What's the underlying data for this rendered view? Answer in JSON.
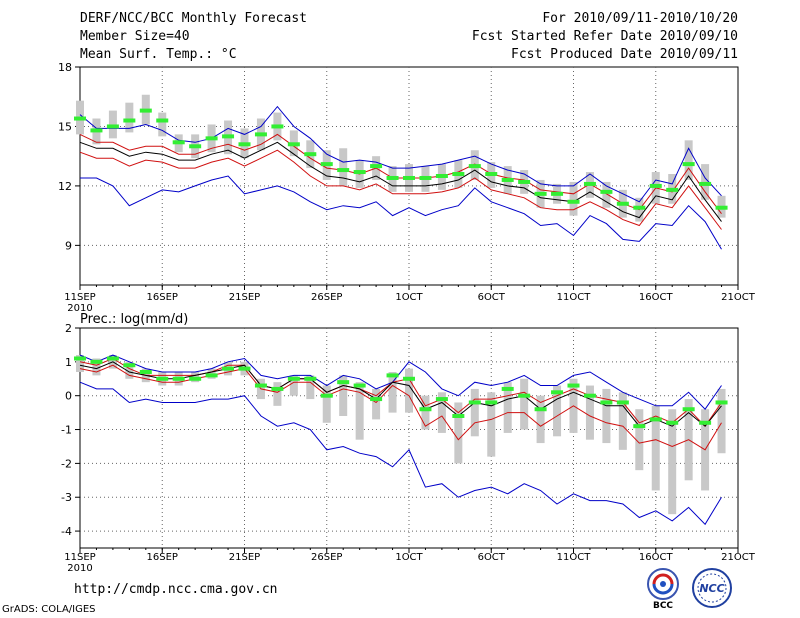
{
  "header": {
    "title": "DERF/NCC/BCC Monthly Forecast",
    "members": "Member Size=40",
    "variable": "Mean Surf. Temp.: °C",
    "period": "For 2010/09/11-2010/10/20",
    "refer": "Fcst Started Refer Date 2010/09/10",
    "produced": "Fcst Produced Date 2010/09/11"
  },
  "footer": {
    "url": "http://cmdp.ncc.cma.gov.cn",
    "grads": "GrADS: COLA/IGES",
    "logo_bcc": "BCC",
    "logo_ncc": "NCC"
  },
  "chart_data": [
    {
      "type": "line",
      "title": "Mean Surf. Temp.: °C",
      "ylim": [
        7,
        18
      ],
      "yticks": [
        9,
        12,
        15,
        18
      ],
      "xlim": [
        1,
        41
      ],
      "xticks": [
        {
          "day": 1,
          "label": "11SEP",
          "sub": "2010"
        },
        {
          "day": 6,
          "label": "16SEP"
        },
        {
          "day": 11,
          "label": "21SEP"
        },
        {
          "day": 16,
          "label": "26SEP"
        },
        {
          "day": 21,
          "label": "1OCT"
        },
        {
          "day": 26,
          "label": "6OCT"
        },
        {
          "day": 31,
          "label": "11OCT"
        },
        {
          "day": 36,
          "label": "16OCT"
        },
        {
          "day": 41,
          "label": "21OCT"
        }
      ],
      "days": [
        1,
        2,
        3,
        4,
        5,
        6,
        7,
        8,
        9,
        10,
        11,
        12,
        13,
        14,
        15,
        16,
        17,
        18,
        19,
        20,
        21,
        22,
        23,
        24,
        25,
        26,
        27,
        28,
        29,
        30,
        31,
        32,
        33,
        34,
        35,
        36,
        37,
        38,
        39,
        40
      ],
      "series": [
        {
          "name": "member-max",
          "color": "#0000c8",
          "values": [
            15.6,
            14.9,
            14.9,
            14.9,
            15.1,
            14.8,
            14.3,
            14.2,
            14.4,
            14.9,
            14.6,
            15.0,
            16.0,
            15.0,
            14.4,
            13.6,
            13.2,
            13.3,
            13.2,
            12.9,
            12.9,
            13.0,
            13.1,
            13.3,
            13.5,
            13.1,
            12.8,
            12.6,
            12.1,
            12.0,
            12.0,
            12.6,
            12.0,
            11.6,
            11.2,
            12.3,
            12.1,
            13.9,
            12.4,
            11.5
          ]
        },
        {
          "name": "upper-bound",
          "color": "#d01010",
          "values": [
            14.6,
            14.2,
            14.2,
            13.8,
            14.0,
            14.0,
            13.6,
            13.6,
            13.9,
            14.1,
            13.8,
            14.1,
            14.6,
            14.0,
            13.4,
            12.9,
            12.8,
            12.6,
            12.9,
            12.4,
            12.4,
            12.4,
            12.5,
            12.7,
            13.1,
            12.6,
            12.4,
            12.3,
            11.8,
            11.7,
            11.6,
            12.1,
            11.6,
            11.1,
            10.8,
            11.9,
            11.7,
            12.9,
            11.7,
            10.6
          ]
        },
        {
          "name": "ensemble-mean",
          "color": "#000000",
          "values": [
            14.2,
            13.9,
            13.9,
            13.5,
            13.7,
            13.6,
            13.3,
            13.3,
            13.6,
            13.8,
            13.4,
            13.8,
            14.2,
            13.6,
            13.0,
            12.5,
            12.4,
            12.2,
            12.5,
            12.0,
            12.0,
            12.0,
            12.1,
            12.3,
            12.8,
            12.2,
            12.0,
            11.9,
            11.4,
            11.3,
            11.2,
            11.7,
            11.2,
            10.7,
            10.4,
            11.5,
            11.3,
            12.5,
            11.3,
            10.2
          ]
        },
        {
          "name": "lower-bound",
          "color": "#d01010",
          "values": [
            13.7,
            13.4,
            13.4,
            13.0,
            13.3,
            13.2,
            12.9,
            12.9,
            13.2,
            13.4,
            13.0,
            13.4,
            13.8,
            13.2,
            12.5,
            12.0,
            12.0,
            11.8,
            12.1,
            11.6,
            11.6,
            11.6,
            11.7,
            11.9,
            12.4,
            11.8,
            11.6,
            11.4,
            10.9,
            10.8,
            10.8,
            11.2,
            10.8,
            10.3,
            10.0,
            11.1,
            10.9,
            12.0,
            10.9,
            9.8
          ]
        },
        {
          "name": "member-min",
          "color": "#0000c8",
          "values": [
            12.4,
            12.4,
            12.0,
            11.0,
            11.4,
            11.8,
            11.7,
            12.0,
            12.3,
            12.5,
            11.6,
            11.8,
            12.0,
            11.7,
            11.2,
            10.8,
            11.0,
            10.9,
            11.2,
            10.5,
            10.9,
            10.5,
            10.8,
            11.0,
            11.9,
            11.2,
            10.9,
            10.6,
            10.0,
            10.1,
            9.5,
            10.5,
            10.1,
            9.3,
            9.2,
            10.1,
            10.0,
            11.0,
            10.2,
            8.8
          ]
        }
      ],
      "observed_green": [
        15.4,
        14.8,
        15.0,
        15.3,
        15.8,
        15.3,
        14.2,
        14.0,
        14.4,
        14.5,
        14.1,
        14.6,
        15.0,
        14.1,
        13.6,
        13.1,
        12.8,
        12.7,
        13.0,
        12.4,
        12.4,
        12.4,
        12.5,
        12.6,
        13.0,
        12.6,
        12.3,
        12.2,
        11.6,
        11.6,
        11.2,
        12.1,
        11.7,
        11.1,
        10.9,
        12.0,
        11.8,
        13.1,
        12.1,
        10.9
      ],
      "spread_low": [
        14.6,
        14.1,
        14.4,
        14.7,
        15.1,
        14.5,
        13.7,
        13.4,
        13.7,
        13.6,
        13.4,
        13.8,
        14.3,
        13.5,
        12.9,
        12.3,
        12.0,
        11.9,
        12.3,
        11.7,
        11.7,
        11.7,
        11.8,
        11.9,
        12.3,
        11.9,
        11.6,
        11.6,
        10.9,
        11.1,
        10.5,
        11.4,
        10.9,
        10.4,
        10.2,
        11.1,
        11.1,
        12.3,
        11.3,
        10.4
      ],
      "spread_high": [
        16.3,
        15.4,
        15.8,
        16.2,
        16.6,
        15.7,
        14.6,
        14.6,
        15.1,
        15.3,
        14.9,
        15.4,
        15.7,
        14.8,
        14.3,
        13.8,
        13.9,
        13.3,
        13.5,
        13.0,
        13.1,
        13.0,
        13.1,
        13.3,
        13.8,
        13.2,
        13.0,
        12.8,
        12.3,
        12.1,
        12.2,
        12.7,
        12.2,
        11.8,
        11.4,
        12.7,
        12.6,
        14.3,
        13.1,
        11.5
      ]
    },
    {
      "type": "line",
      "title": "Prec.: log(mm/d)",
      "ylim": [
        -4.5,
        2
      ],
      "yticks": [
        -4,
        -3,
        -2,
        -1,
        0,
        1,
        2
      ],
      "xlim": [
        1,
        41
      ],
      "xticks": [
        {
          "day": 1,
          "label": "11SEP",
          "sub": "2010"
        },
        {
          "day": 6,
          "label": "16SEP"
        },
        {
          "day": 11,
          "label": "21SEP"
        },
        {
          "day": 16,
          "label": "26SEP"
        },
        {
          "day": 21,
          "label": "1OCT"
        },
        {
          "day": 26,
          "label": "6OCT"
        },
        {
          "day": 31,
          "label": "11OCT"
        },
        {
          "day": 36,
          "label": "16OCT"
        },
        {
          "day": 41,
          "label": "21OCT"
        }
      ],
      "days": [
        1,
        2,
        3,
        4,
        5,
        6,
        7,
        8,
        9,
        10,
        11,
        12,
        13,
        14,
        15,
        16,
        17,
        18,
        19,
        20,
        21,
        22,
        23,
        24,
        25,
        26,
        27,
        28,
        29,
        30,
        31,
        32,
        33,
        34,
        35,
        36,
        37,
        38,
        39,
        40
      ],
      "series": [
        {
          "name": "member-max",
          "color": "#0000c8",
          "values": [
            1.2,
            1.0,
            1.2,
            1.0,
            0.8,
            0.7,
            0.7,
            0.7,
            0.8,
            1.0,
            1.1,
            0.6,
            0.5,
            0.6,
            0.6,
            0.3,
            0.6,
            0.5,
            0.2,
            0.4,
            1.0,
            0.7,
            0.2,
            0.0,
            0.4,
            0.3,
            0.4,
            0.6,
            0.3,
            0.3,
            0.6,
            0.7,
            0.4,
            0.1,
            -0.1,
            -0.3,
            -0.3,
            0.1,
            -0.4,
            0.3
          ]
        },
        {
          "name": "upper-bound",
          "color": "#d01010",
          "values": [
            1.0,
            0.9,
            1.1,
            0.8,
            0.6,
            0.6,
            0.6,
            0.6,
            0.7,
            0.9,
            0.9,
            0.3,
            0.2,
            0.5,
            0.5,
            0.1,
            0.3,
            0.2,
            0.0,
            0.4,
            0.5,
            -0.3,
            -0.1,
            -0.5,
            -0.1,
            -0.1,
            0.0,
            0.1,
            -0.2,
            0.0,
            0.2,
            0.0,
            -0.1,
            -0.2,
            -0.8,
            -0.6,
            -0.8,
            -0.4,
            -0.9,
            -0.2
          ]
        },
        {
          "name": "ensemble-mean",
          "color": "#000000",
          "values": [
            0.9,
            0.8,
            1.0,
            0.7,
            0.6,
            0.5,
            0.5,
            0.6,
            0.7,
            0.8,
            0.9,
            0.3,
            0.2,
            0.5,
            0.5,
            0.1,
            0.3,
            0.2,
            -0.1,
            0.4,
            0.3,
            -0.4,
            -0.2,
            -0.6,
            -0.2,
            -0.3,
            -0.1,
            0.0,
            -0.4,
            -0.1,
            0.1,
            -0.1,
            -0.3,
            -0.3,
            -0.9,
            -0.7,
            -0.9,
            -0.5,
            -0.9,
            -0.3
          ]
        },
        {
          "name": "lower-bound",
          "color": "#d01010",
          "values": [
            0.8,
            0.7,
            0.9,
            0.6,
            0.5,
            0.4,
            0.4,
            0.5,
            0.6,
            0.7,
            0.8,
            0.2,
            0.1,
            0.4,
            0.4,
            0.0,
            0.2,
            0.1,
            -0.2,
            0.3,
            0.0,
            -0.9,
            -0.6,
            -1.3,
            -0.8,
            -0.7,
            -0.5,
            -0.5,
            -0.9,
            -0.6,
            -0.3,
            -0.6,
            -0.8,
            -0.9,
            -1.4,
            -1.3,
            -1.5,
            -1.3,
            -1.6,
            -0.8
          ]
        },
        {
          "name": "member-min",
          "color": "#0000c8",
          "values": [
            0.4,
            0.2,
            0.2,
            -0.2,
            -0.1,
            -0.2,
            -0.2,
            -0.2,
            -0.1,
            -0.1,
            0.0,
            -0.6,
            -0.9,
            -0.8,
            -1.0,
            -1.6,
            -1.5,
            -1.7,
            -1.8,
            -2.1,
            -1.6,
            -2.7,
            -2.6,
            -3.0,
            -2.8,
            -2.7,
            -2.9,
            -2.6,
            -2.8,
            -3.2,
            -2.9,
            -3.1,
            -3.1,
            -3.2,
            -3.6,
            -3.4,
            -3.7,
            -3.3,
            -3.8,
            -3.0
          ]
        }
      ],
      "observed_green": [
        1.1,
        1.0,
        1.1,
        0.9,
        0.7,
        0.5,
        0.5,
        0.5,
        0.6,
        0.8,
        0.8,
        0.3,
        0.2,
        0.5,
        0.5,
        0.0,
        0.4,
        0.3,
        -0.1,
        0.6,
        0.5,
        -0.4,
        -0.1,
        -0.6,
        -0.2,
        -0.2,
        0.2,
        0.0,
        -0.4,
        0.1,
        0.3,
        0.0,
        -0.2,
        -0.2,
        -0.9,
        -0.7,
        -0.8,
        -0.4,
        -0.8,
        -0.2
      ],
      "spread_low": [
        0.7,
        0.6,
        0.8,
        0.5,
        0.4,
        0.3,
        0.3,
        0.4,
        0.5,
        0.6,
        0.6,
        -0.1,
        -0.3,
        0.0,
        -0.1,
        -0.8,
        -0.6,
        -1.3,
        -0.7,
        -0.5,
        -0.5,
        -1.0,
        -1.1,
        -2.0,
        -1.2,
        -1.8,
        -1.1,
        -1.0,
        -1.4,
        -1.2,
        -1.1,
        -1.3,
        -1.4,
        -1.6,
        -2.2,
        -2.8,
        -3.5,
        -2.5,
        -2.8,
        -1.7
      ],
      "spread_high": [
        1.2,
        1.1,
        1.2,
        1.0,
        0.8,
        0.7,
        0.7,
        0.7,
        0.8,
        1.0,
        1.0,
        0.5,
        0.4,
        0.6,
        0.6,
        0.3,
        0.6,
        0.4,
        0.2,
        0.7,
        0.8,
        0.0,
        0.1,
        -0.2,
        0.2,
        0.1,
        0.4,
        0.5,
        0.0,
        0.3,
        0.5,
        0.3,
        0.2,
        0.1,
        -0.4,
        -0.3,
        -0.4,
        -0.1,
        -0.4,
        0.2
      ]
    }
  ]
}
